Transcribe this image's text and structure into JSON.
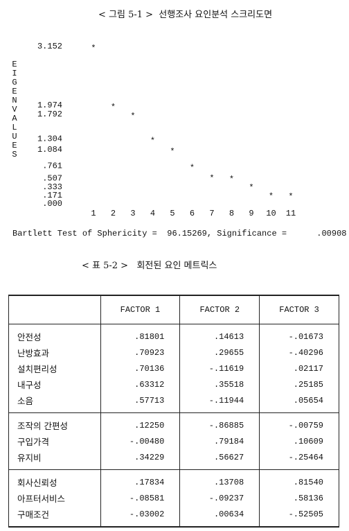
{
  "figure_caption": "< 그림 5-1 >  선행조사 요인분석 스크리도면",
  "chart_data": {
    "type": "scatter",
    "ylabel": "EIGENVALUES",
    "marker": "*",
    "x": [
      1,
      2,
      3,
      4,
      5,
      6,
      7,
      8,
      9,
      10,
      11
    ],
    "values": [
      3.152,
      1.974,
      1.792,
      1.304,
      1.084,
      0.761,
      0.55,
      0.53,
      0.36,
      0.19,
      0.18
    ],
    "xlim": [
      0.5,
      11.5
    ],
    "xticks": [
      1,
      2,
      3,
      4,
      5,
      6,
      7,
      8,
      9,
      10,
      11
    ],
    "ylim": [
      0,
      3.152
    ],
    "yticks": [
      {
        "value": 0,
        "label": ".000"
      },
      {
        "value": 0.171,
        "label": ".171"
      },
      {
        "value": 0.333,
        "label": ".333"
      },
      {
        "value": 0.507,
        "label": ".507"
      },
      {
        "value": 0.761,
        "label": ".761"
      },
      1.084,
      1.304,
      1.792,
      1.974,
      3.152
    ],
    "grid": false
  },
  "bartlett": "Bartlett Test of Sphericity =  96.15269, Significance =      .00908",
  "table_caption": "< 표 5-2 >   회전된 요인 메트릭스",
  "table": {
    "header": [
      "FACTOR  1",
      "FACTOR  2",
      "FACTOR  3"
    ],
    "groups": [
      [
        [
          "안전성",
          ".81801",
          ".14613",
          "-.01673"
        ],
        [
          "난방효과",
          ".70923",
          ".29655",
          "-.40296"
        ],
        [
          "설치편리성",
          ".70136",
          "-.11619",
          ".02117"
        ],
        [
          "내구성",
          ".63312",
          ".35518",
          ".25185"
        ],
        [
          "소음",
          ".57713",
          "-.11944",
          ".05654"
        ]
      ],
      [
        [
          "조작의 간편성",
          ".12250",
          "-.86885",
          "-.00759"
        ],
        [
          "구입가격",
          "-.00480",
          ".79184",
          ".10609"
        ],
        [
          "유지비",
          ".34229",
          ".56627",
          "-.25464"
        ]
      ],
      [
        [
          "회사신뢰성",
          ".17834",
          ".13708",
          ".81540"
        ],
        [
          "아프터서비스",
          "-.08581",
          "-.09237",
          ".58136"
        ],
        [
          "구매조건",
          "-.03002",
          ".00634",
          "-.52505"
        ]
      ]
    ]
  }
}
